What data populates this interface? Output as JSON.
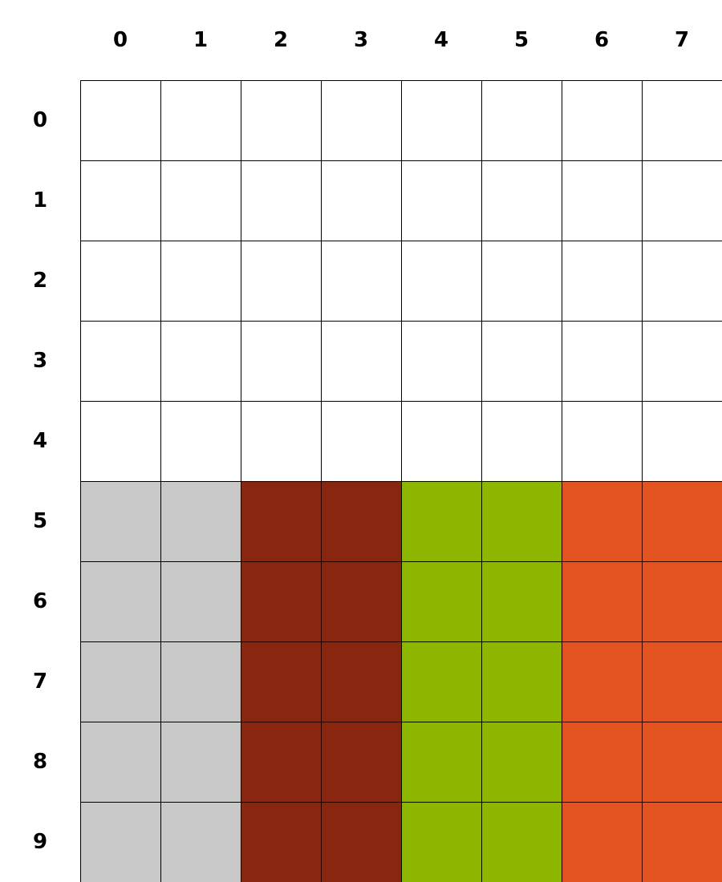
{
  "board": {
    "column_labels": [
      "0",
      "1",
      "2",
      "3",
      "4",
      "5",
      "6",
      "7"
    ],
    "row_labels": [
      "0",
      "1",
      "2",
      "3",
      "4",
      "5",
      "6",
      "7",
      "8",
      "9"
    ],
    "colors": {
      "empty": "#ffffff",
      "gray": "#c8c8c8",
      "dark_red": "#882610",
      "green": "#8db600",
      "orange": "#e3531f",
      "grid_line": "#000000"
    },
    "cells": [
      [
        "empty",
        "empty",
        "empty",
        "empty",
        "empty",
        "empty",
        "empty",
        "empty"
      ],
      [
        "empty",
        "empty",
        "empty",
        "empty",
        "empty",
        "empty",
        "empty",
        "empty"
      ],
      [
        "empty",
        "empty",
        "empty",
        "empty",
        "empty",
        "empty",
        "empty",
        "empty"
      ],
      [
        "empty",
        "empty",
        "empty",
        "empty",
        "empty",
        "empty",
        "empty",
        "empty"
      ],
      [
        "empty",
        "empty",
        "empty",
        "empty",
        "empty",
        "empty",
        "empty",
        "empty"
      ],
      [
        "gray",
        "gray",
        "dark_red",
        "dark_red",
        "green",
        "green",
        "orange",
        "orange"
      ],
      [
        "gray",
        "gray",
        "dark_red",
        "dark_red",
        "green",
        "green",
        "orange",
        "orange"
      ],
      [
        "gray",
        "gray",
        "dark_red",
        "dark_red",
        "green",
        "green",
        "orange",
        "orange"
      ],
      [
        "gray",
        "gray",
        "dark_red",
        "dark_red",
        "green",
        "green",
        "orange",
        "orange"
      ],
      [
        "gray",
        "gray",
        "dark_red",
        "dark_red",
        "green",
        "green",
        "orange",
        "orange"
      ]
    ]
  }
}
